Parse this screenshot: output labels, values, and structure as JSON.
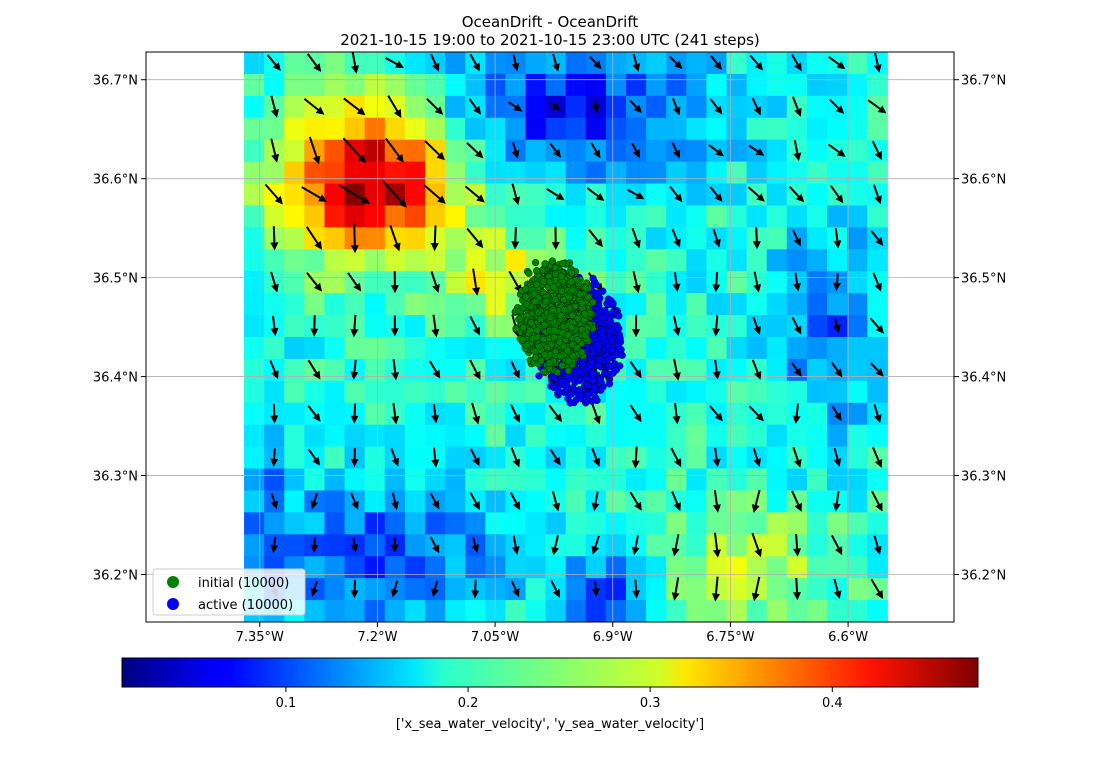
{
  "title_line1": "OceanDrift - OceanDrift",
  "title_line2": "2021-10-15 19:00 to 2021-10-15 23:00 UTC (241 steps)",
  "map": {
    "lon_range": [
      -7.495,
      -6.465
    ],
    "lat_range": [
      36.152,
      36.728
    ],
    "data_lon_range": [
      -7.37,
      -6.55
    ],
    "data_lat_range": [
      36.152,
      36.728
    ],
    "lon_ticks": [
      {
        "value": -7.35,
        "label": "7.35°W"
      },
      {
        "value": -7.2,
        "label": "7.2°W"
      },
      {
        "value": -7.05,
        "label": "7.05°W"
      },
      {
        "value": -6.9,
        "label": "6.9°W"
      },
      {
        "value": -6.75,
        "label": "6.75°W"
      },
      {
        "value": -6.6,
        "label": "6.6°W"
      }
    ],
    "lat_ticks": [
      {
        "value": 36.7,
        "label": "36.7°N"
      },
      {
        "value": 36.6,
        "label": "36.6°N"
      },
      {
        "value": 36.5,
        "label": "36.5°N"
      },
      {
        "value": 36.4,
        "label": "36.4°N"
      },
      {
        "value": 36.3,
        "label": "36.3°N"
      },
      {
        "value": 36.2,
        "label": "36.2°N"
      }
    ],
    "grid": true,
    "background_field": "sea water speed shown as colored grid cells with black current arrows"
  },
  "particles": {
    "initial": {
      "count": 10000,
      "color": "#008000",
      "center_lon": -6.975,
      "center_lat": 36.462,
      "radius_lon": 0.052,
      "radius_lat": 0.058
    },
    "active": {
      "count": 10000,
      "color": "#0000ff",
      "center_lon": -6.944,
      "center_lat": 36.437,
      "radius_lon": 0.058,
      "radius_lat": 0.066
    }
  },
  "legend": {
    "placement": "lower-left",
    "entries": [
      {
        "label": "initial (10000)",
        "color": "#008000"
      },
      {
        "label": "active (10000)",
        "color": "#0000ff"
      }
    ]
  },
  "colorbar": {
    "range": [
      0.01,
      0.48
    ],
    "ticks": [
      {
        "value": 0.1,
        "label": "0.1"
      },
      {
        "value": 0.2,
        "label": "0.2"
      },
      {
        "value": 0.3,
        "label": "0.3"
      },
      {
        "value": 0.4,
        "label": "0.4"
      }
    ],
    "label": "['x_sea_water_velocity', 'y_sea_water_velocity']",
    "colormap": "jet"
  }
}
